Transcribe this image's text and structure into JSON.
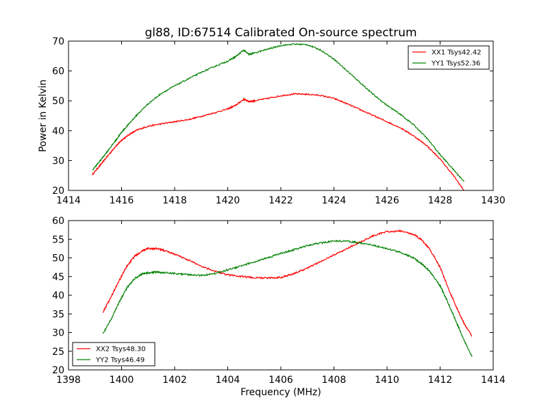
{
  "chart_data": [
    {
      "type": "line",
      "title": "gl88, ID:67514 Calibrated On-source spectrum",
      "xlabel": "",
      "ylabel": "Power in Kelvin",
      "xlim": [
        1414,
        1430
      ],
      "ylim": [
        20,
        70
      ],
      "xticks": [
        1414,
        1416,
        1418,
        1420,
        1422,
        1424,
        1426,
        1428,
        1430
      ],
      "yticks": [
        20,
        30,
        40,
        50,
        60,
        70
      ],
      "legend_position": "top-right",
      "series": [
        {
          "name": "XX1 Tsys42.42",
          "color": "#ff0000",
          "x": [
            1414.9,
            1415.2,
            1415.5,
            1415.8,
            1416.0,
            1416.3,
            1416.6,
            1417.0,
            1417.5,
            1418.0,
            1418.5,
            1419.0,
            1419.5,
            1420.0,
            1420.3,
            1420.6,
            1420.8,
            1421.0,
            1421.5,
            1422.0,
            1422.5,
            1423.0,
            1423.5,
            1424.0,
            1424.5,
            1425.0,
            1425.5,
            1426.0,
            1426.5,
            1427.0,
            1427.5,
            1428.0,
            1428.5,
            1428.9
          ],
          "y": [
            25.3,
            28.5,
            31.8,
            35.0,
            36.8,
            38.8,
            40.3,
            41.5,
            42.3,
            43.0,
            43.7,
            44.8,
            46.0,
            47.3,
            48.5,
            50.5,
            49.8,
            50.0,
            50.8,
            51.7,
            52.3,
            52.2,
            51.8,
            50.8,
            49.0,
            47.0,
            45.0,
            43.0,
            41.0,
            38.3,
            35.0,
            30.5,
            25.0,
            20.0
          ]
        },
        {
          "name": "YY1 Tsys52.36",
          "color": "#008000",
          "x": [
            1414.9,
            1415.2,
            1415.5,
            1415.8,
            1416.0,
            1416.3,
            1416.6,
            1417.0,
            1417.5,
            1418.0,
            1418.5,
            1419.0,
            1419.5,
            1420.0,
            1420.3,
            1420.6,
            1420.8,
            1421.0,
            1421.5,
            1422.0,
            1422.5,
            1423.0,
            1423.5,
            1424.0,
            1424.5,
            1425.0,
            1425.5,
            1426.0,
            1426.5,
            1427.0,
            1427.5,
            1428.0,
            1428.5,
            1428.9
          ],
          "y": [
            26.8,
            30.0,
            33.5,
            37.0,
            39.5,
            42.5,
            45.5,
            49.0,
            52.5,
            55.0,
            57.3,
            59.5,
            61.5,
            63.3,
            64.8,
            67.0,
            65.5,
            66.0,
            67.3,
            68.5,
            69.0,
            68.8,
            67.0,
            64.0,
            60.0,
            56.0,
            52.0,
            48.5,
            45.5,
            42.0,
            37.5,
            32.0,
            27.0,
            23.0
          ]
        }
      ]
    },
    {
      "type": "line",
      "title": "",
      "xlabel": "Frequency (MHz)",
      "ylabel": "",
      "xlim": [
        1398,
        1414
      ],
      "ylim": [
        20,
        60
      ],
      "xticks": [
        1398,
        1400,
        1402,
        1404,
        1406,
        1408,
        1410,
        1412,
        1414
      ],
      "yticks": [
        20,
        25,
        30,
        35,
        40,
        45,
        50,
        55,
        60
      ],
      "legend_position": "bottom-left",
      "series": [
        {
          "name": "XX2 Tsys48.30",
          "color": "#ff0000",
          "x": [
            1399.3,
            1399.6,
            1399.9,
            1400.2,
            1400.5,
            1400.8,
            1401.0,
            1401.3,
            1401.6,
            1402.0,
            1402.5,
            1403.0,
            1403.5,
            1404.0,
            1404.5,
            1405.0,
            1405.5,
            1406.0,
            1406.5,
            1407.0,
            1407.5,
            1408.0,
            1408.5,
            1409.0,
            1409.5,
            1410.0,
            1410.5,
            1411.0,
            1411.3,
            1411.6,
            1412.0,
            1412.3,
            1412.6,
            1412.9,
            1413.2
          ],
          "y": [
            35.5,
            39.5,
            43.8,
            47.8,
            50.5,
            52.0,
            52.5,
            52.5,
            52.0,
            51.0,
            49.5,
            47.8,
            46.5,
            45.5,
            45.0,
            44.7,
            44.6,
            44.8,
            45.8,
            47.3,
            49.0,
            50.8,
            52.5,
            54.3,
            56.0,
            57.0,
            57.2,
            56.3,
            54.8,
            52.5,
            47.5,
            42.0,
            37.0,
            32.5,
            29.0
          ]
        },
        {
          "name": "YY2 Tsys46.49",
          "color": "#008000",
          "x": [
            1399.3,
            1399.6,
            1399.9,
            1400.2,
            1400.5,
            1400.8,
            1401.0,
            1401.3,
            1401.6,
            1402.0,
            1402.5,
            1403.0,
            1403.5,
            1404.0,
            1404.5,
            1405.0,
            1405.5,
            1406.0,
            1406.5,
            1407.0,
            1407.5,
            1408.0,
            1408.5,
            1409.0,
            1409.5,
            1410.0,
            1410.5,
            1411.0,
            1411.3,
            1411.6,
            1412.0,
            1412.3,
            1412.6,
            1412.9,
            1413.2
          ],
          "y": [
            29.8,
            33.5,
            38.0,
            42.0,
            44.5,
            45.8,
            46.0,
            46.2,
            46.0,
            45.8,
            45.5,
            45.3,
            45.8,
            46.8,
            47.8,
            49.0,
            50.0,
            51.2,
            52.2,
            53.3,
            54.0,
            54.5,
            54.5,
            54.0,
            53.3,
            52.5,
            51.5,
            50.0,
            48.5,
            46.5,
            42.5,
            38.0,
            33.0,
            28.0,
            23.5
          ]
        }
      ]
    }
  ]
}
